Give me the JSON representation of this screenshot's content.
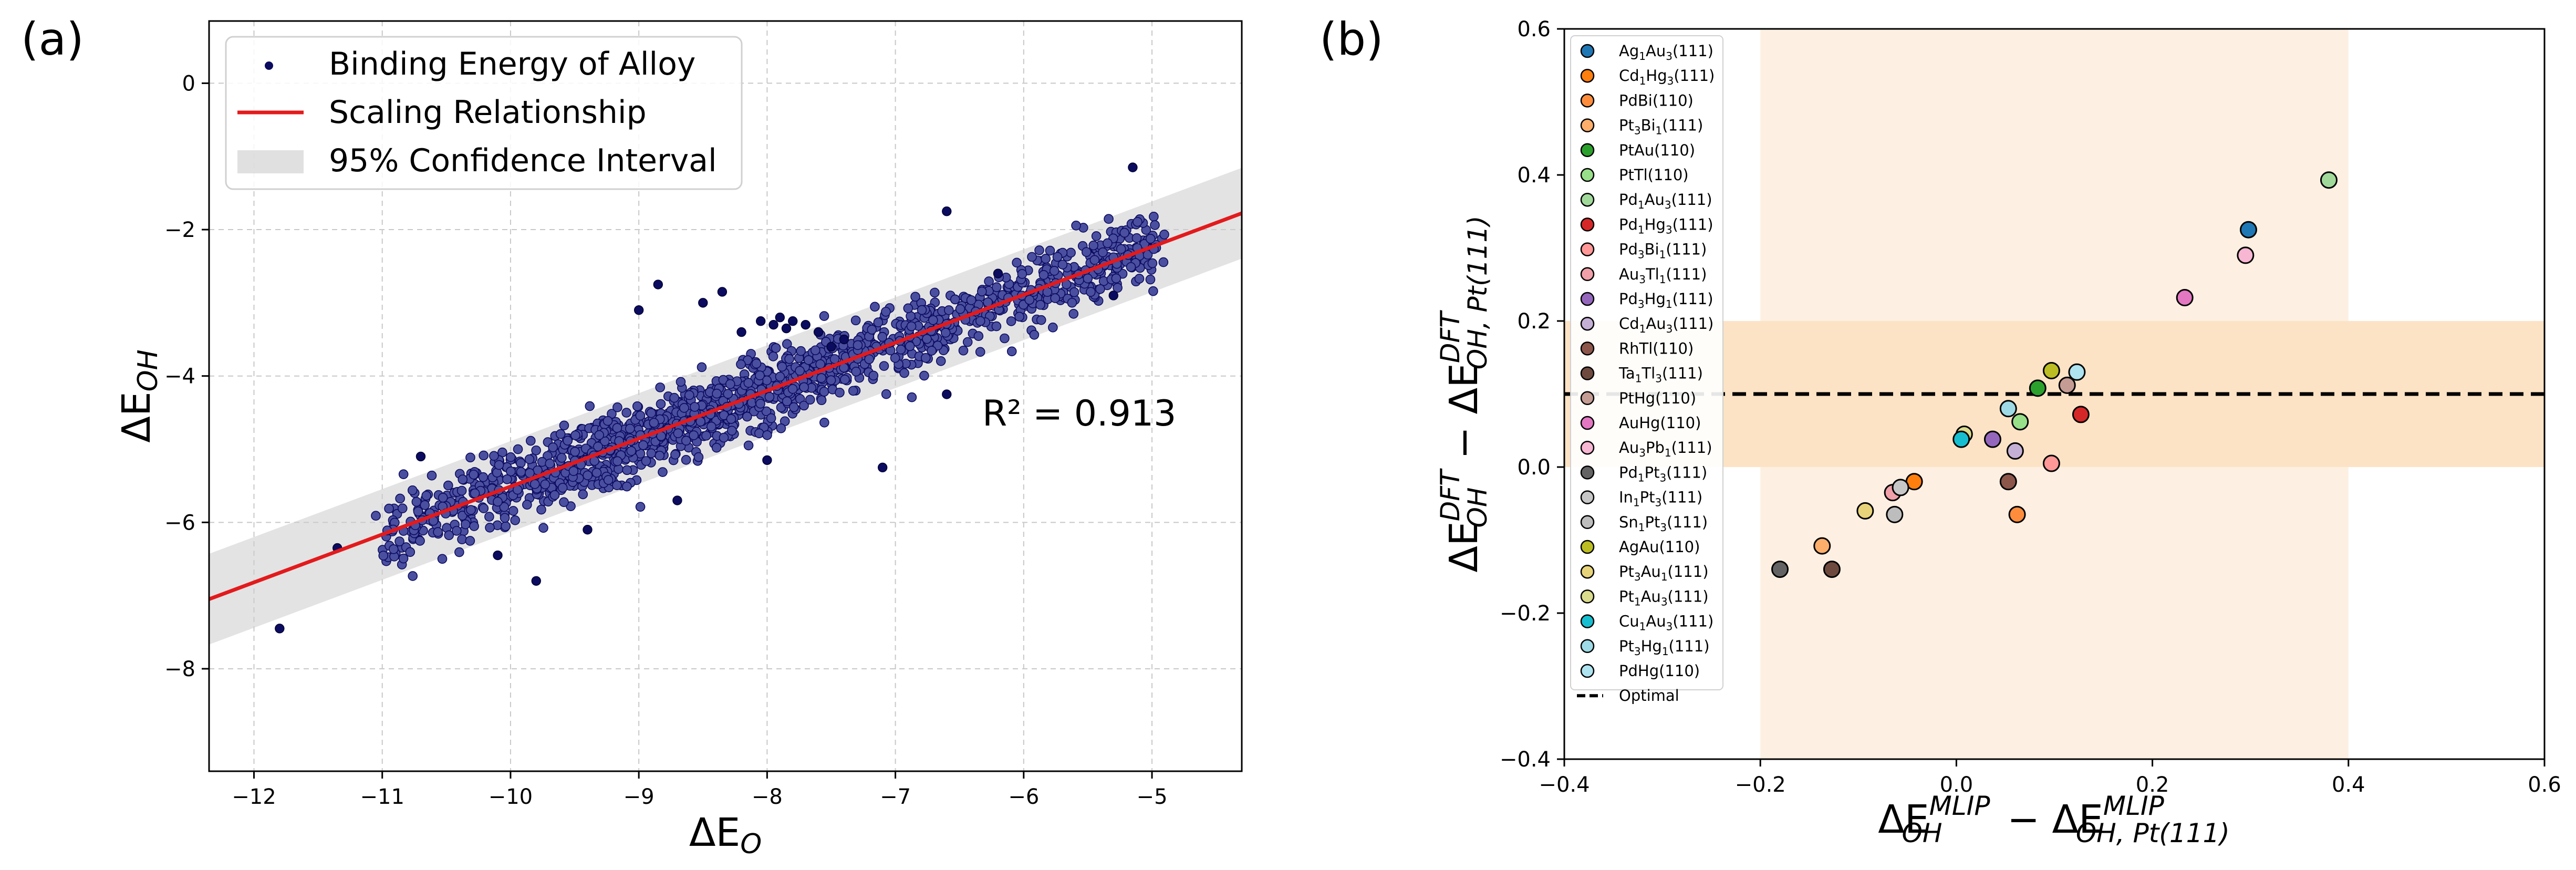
{
  "chart_data": [
    {
      "panel_label": "(a)",
      "type": "scatter",
      "xlabel_main": "ΔE",
      "xlabel_sub": "O",
      "ylabel_main": "ΔE",
      "ylabel_sub": "OH",
      "xlim": [
        -12.35,
        -4.3
      ],
      "ylim": [
        -9.4,
        0.85
      ],
      "xticks": [
        -12,
        -11,
        -10,
        -9,
        -8,
        -7,
        -6,
        -5
      ],
      "yticks": [
        -8,
        -6,
        -4,
        -2,
        0
      ],
      "grid": true,
      "legend_position": "upper-left",
      "legend": {
        "scatter_label": "Binding Energy of Alloy",
        "line_label": "Scaling Relationship",
        "band_label": "95% Confidence Interval"
      },
      "r2_label": "R² = 0.913",
      "regression": {
        "slope": 0.655,
        "intercept": 1.04,
        "ci_halfwidth": 0.62
      },
      "n_points": 1500,
      "point_spread": 0.25,
      "outliers": [
        [
          -11.8,
          -7.45
        ],
        [
          -9.8,
          -6.8
        ],
        [
          -9.0,
          -3.1
        ],
        [
          -8.85,
          -2.75
        ],
        [
          -8.5,
          -3.0
        ],
        [
          -8.35,
          -2.85
        ],
        [
          -8.2,
          -3.4
        ],
        [
          -8.05,
          -3.25
        ],
        [
          -7.95,
          -3.3
        ],
        [
          -7.9,
          -3.2
        ],
        [
          -7.85,
          -3.35
        ],
        [
          -7.8,
          -3.25
        ],
        [
          -7.7,
          -3.3
        ],
        [
          -7.6,
          -3.4
        ],
        [
          -7.5,
          -3.6
        ],
        [
          -7.4,
          -3.5
        ],
        [
          -6.6,
          -1.75
        ],
        [
          -6.2,
          -2.6
        ],
        [
          -5.15,
          -1.15
        ],
        [
          -10.7,
          -5.1
        ],
        [
          -10.1,
          -6.45
        ],
        [
          -9.4,
          -6.1
        ],
        [
          -8.7,
          -5.7
        ],
        [
          -8.0,
          -5.15
        ],
        [
          -7.1,
          -5.25
        ],
        [
          -6.6,
          -4.25
        ],
        [
          -5.3,
          -2.9
        ],
        [
          -11.35,
          -6.35
        ]
      ],
      "colors": {
        "point_fill": "#4b4f9f",
        "point_dark": "#0b0b60",
        "line": "#e31a1c",
        "band": "#cccccc"
      }
    },
    {
      "panel_label": "(b)",
      "type": "scatter",
      "xlabel": {
        "t1": "ΔE",
        "sup1": "MLIP",
        "sub1": "OH",
        "t2": " − ΔE",
        "sup2": "MLIP",
        "sub2": "OH, Pt(111)"
      },
      "ylabel": {
        "t1": "ΔE",
        "sup1": "DFT",
        "sub1": "OH",
        "t2": " − ΔE",
        "sup2": "DFT",
        "sub2": "OH, Pt(111)"
      },
      "xlim": [
        -0.4,
        0.6
      ],
      "ylim": [
        -0.4,
        0.6
      ],
      "xticks": [
        -0.4,
        -0.2,
        0.0,
        0.2,
        0.4,
        0.6
      ],
      "yticks": [
        -0.4,
        -0.2,
        0.0,
        0.2,
        0.4,
        0.6
      ],
      "grid": false,
      "legend_position": "upper-left",
      "optimal_y": 0.1,
      "optimal_label": "Optimal",
      "band_vertical_x": [
        -0.2,
        0.4
      ],
      "band_horizontal_y": [
        0.0,
        0.2
      ],
      "band_vertical_color": "#fdf0e2",
      "band_horizontal_color": "#fde3c5",
      "series": [
        {
          "name": "Ag1Au3(111)",
          "parts": [
            [
              "Ag",
              ""
            ],
            [
              "1",
              "sub"
            ],
            [
              "Au",
              ""
            ],
            [
              "3",
              "sub"
            ],
            [
              "(111)",
              ""
            ]
          ],
          "color": "#1f77b4",
          "x": 0.298,
          "y": 0.325
        },
        {
          "name": "Cd1Hg3(111)",
          "parts": [
            [
              "Cd",
              ""
            ],
            [
              "1",
              "sub"
            ],
            [
              "Hg",
              ""
            ],
            [
              "3",
              "sub"
            ],
            [
              "(111)",
              ""
            ]
          ],
          "color": "#ff7f0e",
          "x": -0.043,
          "y": -0.02
        },
        {
          "name": "PdBi(110)",
          "parts": [
            [
              "PdBi(110)",
              ""
            ]
          ],
          "color": "#fd8d3c",
          "x": 0.062,
          "y": -0.065
        },
        {
          "name": "Pt3Bi1(111)",
          "parts": [
            [
              "Pt",
              ""
            ],
            [
              "3",
              "sub"
            ],
            [
              "Bi",
              ""
            ],
            [
              "1",
              "sub"
            ],
            [
              "(111)",
              ""
            ]
          ],
          "color": "#fdae6b",
          "x": -0.137,
          "y": -0.108
        },
        {
          "name": "PtAu(110)",
          "parts": [
            [
              "PtAu(110)",
              ""
            ]
          ],
          "color": "#2ca02c",
          "x": 0.083,
          "y": 0.108
        },
        {
          "name": "PtTl(110)",
          "parts": [
            [
              "PtTl(110)",
              ""
            ]
          ],
          "color": "#98df8a",
          "x": 0.065,
          "y": 0.062
        },
        {
          "name": "Pd1Au3(111)",
          "parts": [
            [
              "Pd",
              ""
            ],
            [
              "1",
              "sub"
            ],
            [
              "Au",
              ""
            ],
            [
              "3",
              "sub"
            ],
            [
              "(111)",
              ""
            ]
          ],
          "color": "#a1d99b",
          "x": 0.38,
          "y": 0.393
        },
        {
          "name": "Pd1Hg3(111)",
          "parts": [
            [
              "Pd",
              ""
            ],
            [
              "1",
              "sub"
            ],
            [
              "Hg",
              ""
            ],
            [
              "3",
              "sub"
            ],
            [
              "(111)",
              ""
            ]
          ],
          "color": "#d62728",
          "x": 0.127,
          "y": 0.072
        },
        {
          "name": "Pd3Bi1(111)",
          "parts": [
            [
              "Pd",
              ""
            ],
            [
              "3",
              "sub"
            ],
            [
              "Bi",
              ""
            ],
            [
              "1",
              "sub"
            ],
            [
              "(111)",
              ""
            ]
          ],
          "color": "#ff9896",
          "x": 0.097,
          "y": 0.005
        },
        {
          "name": "Au3Tl1(111)",
          "parts": [
            [
              "Au",
              ""
            ],
            [
              "3",
              "sub"
            ],
            [
              "Tl",
              ""
            ],
            [
              "1",
              "sub"
            ],
            [
              "(111)",
              ""
            ]
          ],
          "color": "#f0a0a8",
          "x": -0.065,
          "y": -0.035
        },
        {
          "name": "Pd3Hg1(111)",
          "parts": [
            [
              "Pd",
              ""
            ],
            [
              "3",
              "sub"
            ],
            [
              "Hg",
              ""
            ],
            [
              "1",
              "sub"
            ],
            [
              "(111)",
              ""
            ]
          ],
          "color": "#9467bd",
          "x": 0.037,
          "y": 0.038
        },
        {
          "name": "Cd1Au3(111)",
          "parts": [
            [
              "Cd",
              ""
            ],
            [
              "1",
              "sub"
            ],
            [
              "Au",
              ""
            ],
            [
              "3",
              "sub"
            ],
            [
              "(111)",
              ""
            ]
          ],
          "color": "#c5b0d5",
          "x": 0.06,
          "y": 0.022
        },
        {
          "name": "RhTl(110)",
          "parts": [
            [
              "RhTl(110)",
              ""
            ]
          ],
          "color": "#8c564b",
          "x": 0.053,
          "y": -0.02
        },
        {
          "name": "Ta1Tl3(111)",
          "parts": [
            [
              "Ta",
              ""
            ],
            [
              "1",
              "sub"
            ],
            [
              "Tl",
              ""
            ],
            [
              "3",
              "sub"
            ],
            [
              "(111)",
              ""
            ]
          ],
          "color": "#6e4a3e",
          "x": -0.127,
          "y": -0.14
        },
        {
          "name": "PtHg(110)",
          "parts": [
            [
              "PtHg(110)",
              ""
            ]
          ],
          "color": "#c49c94",
          "x": 0.113,
          "y": 0.112
        },
        {
          "name": "AuHg(110)",
          "parts": [
            [
              "AuHg(110)",
              ""
            ]
          ],
          "color": "#e377c2",
          "x": 0.233,
          "y": 0.232
        },
        {
          "name": "Au3Pb1(111)",
          "parts": [
            [
              "Au",
              ""
            ],
            [
              "3",
              "sub"
            ],
            [
              "Pb",
              ""
            ],
            [
              "1",
              "sub"
            ],
            [
              "(111)",
              ""
            ]
          ],
          "color": "#f7b6d2",
          "x": 0.295,
          "y": 0.29
        },
        {
          "name": "Pd1Pt3(111)",
          "parts": [
            [
              "Pd",
              ""
            ],
            [
              "1",
              "sub"
            ],
            [
              "Pt",
              ""
            ],
            [
              "3",
              "sub"
            ],
            [
              "(111)",
              ""
            ]
          ],
          "color": "#636363",
          "x": -0.18,
          "y": -0.14
        },
        {
          "name": "In1Pt3(111)",
          "parts": [
            [
              "In",
              ""
            ],
            [
              "1",
              "sub"
            ],
            [
              "Pt",
              ""
            ],
            [
              "3",
              "sub"
            ],
            [
              "(111)",
              ""
            ]
          ],
          "color": "#c7c7c7",
          "x": -0.057,
          "y": -0.028
        },
        {
          "name": "Sn1Pt3(111)",
          "parts": [
            [
              "Sn",
              ""
            ],
            [
              "1",
              "sub"
            ],
            [
              "Pt",
              ""
            ],
            [
              "3",
              "sub"
            ],
            [
              "(111)",
              ""
            ]
          ],
          "color": "#bdbdbd",
          "x": -0.063,
          "y": -0.065
        },
        {
          "name": "AgAu(110)",
          "parts": [
            [
              "AgAu(110)",
              ""
            ]
          ],
          "color": "#bcbd22",
          "x": 0.097,
          "y": 0.132
        },
        {
          "name": "Pt3Au1(111)",
          "parts": [
            [
              "Pt",
              ""
            ],
            [
              "3",
              "sub"
            ],
            [
              "Au",
              ""
            ],
            [
              "1",
              "sub"
            ],
            [
              "(111)",
              ""
            ]
          ],
          "color": "#e7d47a",
          "x": -0.093,
          "y": -0.06
        },
        {
          "name": "Pt1Au3(111)",
          "parts": [
            [
              "Pt",
              ""
            ],
            [
              "1",
              "sub"
            ],
            [
              "Au",
              ""
            ],
            [
              "3",
              "sub"
            ],
            [
              "(111)",
              ""
            ]
          ],
          "color": "#dbdb8d",
          "x": 0.008,
          "y": 0.045
        },
        {
          "name": "Cu1Au3(111)",
          "parts": [
            [
              "Cu",
              ""
            ],
            [
              "1",
              "sub"
            ],
            [
              "Au",
              ""
            ],
            [
              "3",
              "sub"
            ],
            [
              "(111)",
              ""
            ]
          ],
          "color": "#17becf",
          "x": 0.005,
          "y": 0.038
        },
        {
          "name": "Pt3Hg1(111)",
          "parts": [
            [
              "Pt",
              ""
            ],
            [
              "3",
              "sub"
            ],
            [
              "Hg",
              ""
            ],
            [
              "1",
              "sub"
            ],
            [
              "(111)",
              ""
            ]
          ],
          "color": "#9edae5",
          "x": 0.053,
          "y": 0.08
        },
        {
          "name": "PdHg(110)",
          "parts": [
            [
              "PdHg(110)",
              ""
            ]
          ],
          "color": "#aee3f0",
          "x": 0.123,
          "y": 0.13
        }
      ]
    }
  ]
}
